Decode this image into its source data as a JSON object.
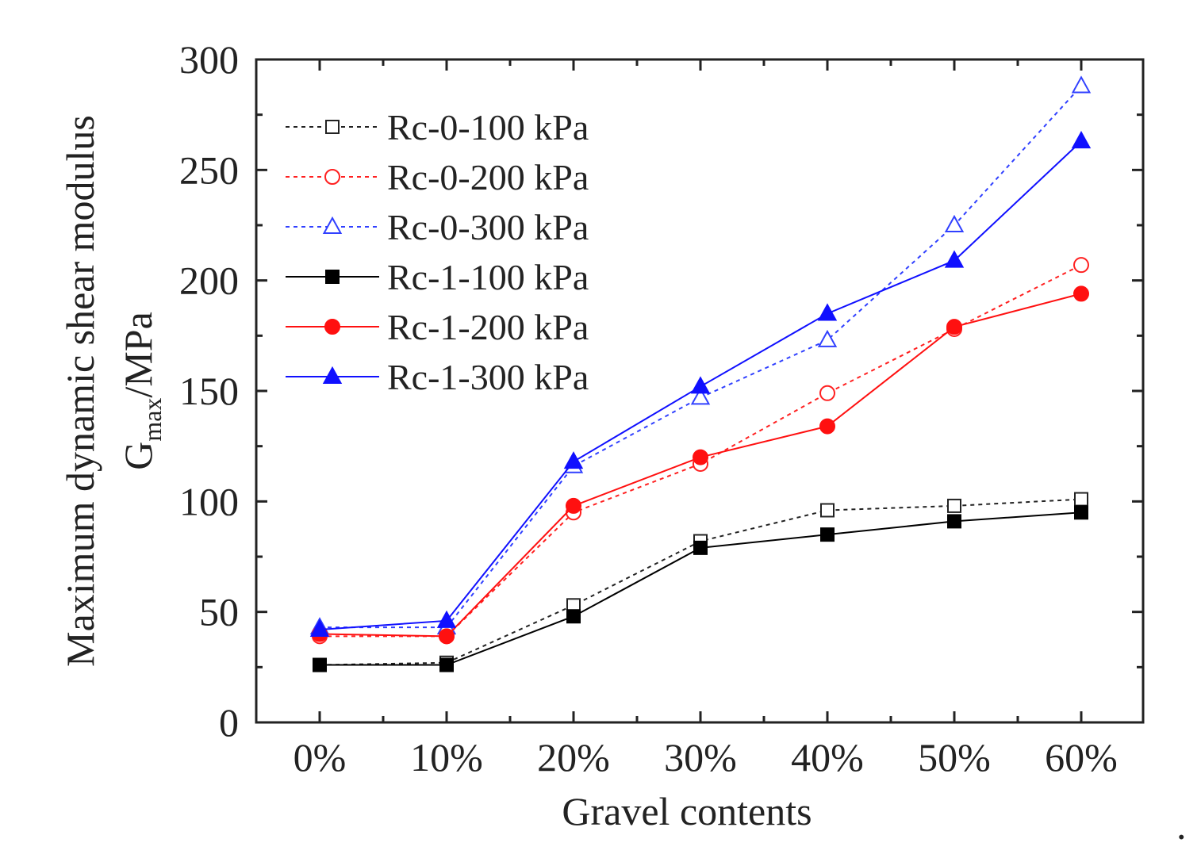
{
  "chart_data": {
    "type": "line",
    "xlabel": "Gravel contents",
    "ylabel_line1": "Maximum dynamic shear modulus",
    "ylabel_line2": {
      "main": "G",
      "sub": "max",
      "unit": "/MPa"
    },
    "categories": [
      "0%",
      "10%",
      "20%",
      "30%",
      "40%",
      "50%",
      "60%"
    ],
    "ylim": [
      0,
      300
    ],
    "yticks": [
      0,
      50,
      100,
      150,
      200,
      250,
      300
    ],
    "grid": false,
    "legend_position": "top-left",
    "trailing_mark": ".",
    "series": [
      {
        "name": "Rc-0-100 kPa",
        "values": [
          26,
          27,
          53,
          82,
          96,
          98,
          101
        ],
        "color": "#222222",
        "line": "dotted",
        "marker": "square",
        "filled": false
      },
      {
        "name": "Rc-0-200 kPa",
        "values": [
          39,
          39,
          95,
          117,
          149,
          178,
          207
        ],
        "color": "#ff2020",
        "line": "dotted",
        "marker": "circle",
        "filled": false
      },
      {
        "name": "Rc-0-300 kPa",
        "values": [
          43,
          43,
          116,
          147,
          173,
          225,
          288
        ],
        "color": "#3040ff",
        "line": "dotted",
        "marker": "triangle",
        "filled": false
      },
      {
        "name": "Rc-1-100 kPa",
        "values": [
          26,
          26,
          48,
          79,
          85,
          91,
          95
        ],
        "color": "#000000",
        "line": "solid",
        "marker": "square",
        "filled": true
      },
      {
        "name": "Rc-1-200 kPa",
        "values": [
          40,
          39,
          98,
          120,
          134,
          179,
          194
        ],
        "color": "#ff1010",
        "line": "solid",
        "marker": "circle",
        "filled": true
      },
      {
        "name": "Rc-1-300 kPa",
        "values": [
          42,
          46,
          118,
          152,
          185,
          209,
          263
        ],
        "color": "#1010ff",
        "line": "solid",
        "marker": "triangle",
        "filled": true
      }
    ]
  }
}
